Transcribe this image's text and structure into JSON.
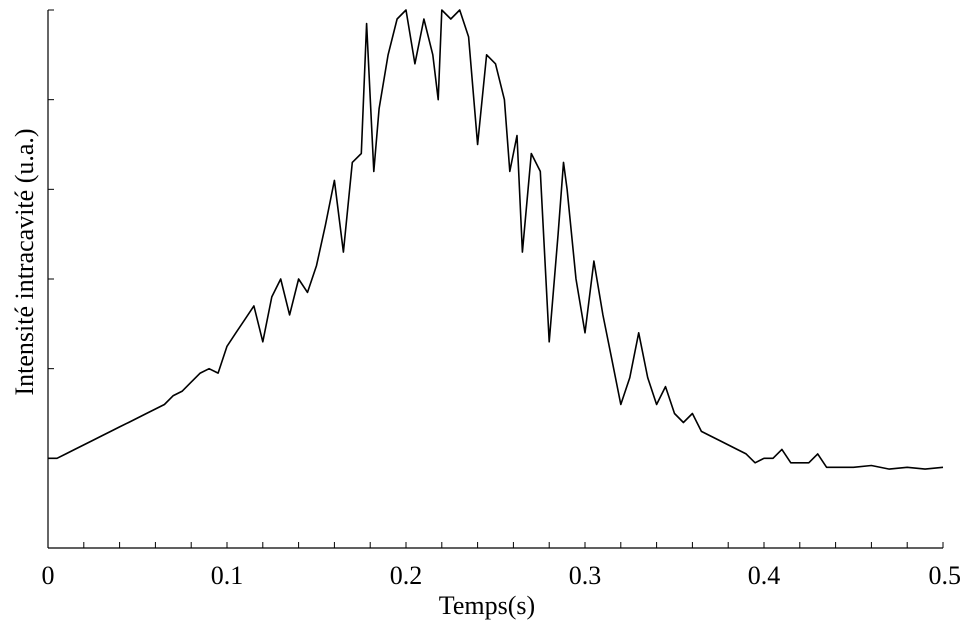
{
  "chart_data": {
    "type": "line",
    "xlabel": "Temps(s)",
    "ylabel": "Intensité intracavité (u.a.)",
    "xlim": [
      0,
      0.5
    ],
    "ylim": [
      0,
      6
    ],
    "x_ticks": [
      "0",
      "0.1",
      "0.2",
      "0.3",
      "0.4",
      "0.5"
    ],
    "x_minor_step": 0.02,
    "y_tick_step": 1,
    "y_tick_labels_shown": false,
    "grid": false,
    "legend": "none",
    "series": [
      {
        "x": [
          0.0,
          0.005,
          0.01,
          0.015,
          0.02,
          0.025,
          0.03,
          0.035,
          0.04,
          0.045,
          0.05,
          0.055,
          0.06,
          0.065,
          0.07,
          0.075,
          0.08,
          0.085,
          0.09,
          0.095,
          0.1,
          0.105,
          0.11,
          0.115,
          0.12,
          0.125,
          0.13,
          0.135,
          0.14,
          0.145,
          0.15,
          0.155,
          0.16,
          0.165,
          0.17,
          0.175,
          0.178,
          0.182,
          0.185,
          0.19,
          0.195,
          0.2,
          0.205,
          0.21,
          0.215,
          0.218,
          0.22,
          0.225,
          0.23,
          0.235,
          0.24,
          0.245,
          0.25,
          0.255,
          0.258,
          0.262,
          0.265,
          0.27,
          0.275,
          0.28,
          0.285,
          0.288,
          0.29,
          0.295,
          0.3,
          0.305,
          0.31,
          0.315,
          0.32,
          0.325,
          0.33,
          0.335,
          0.34,
          0.345,
          0.35,
          0.355,
          0.36,
          0.365,
          0.37,
          0.375,
          0.38,
          0.385,
          0.39,
          0.395,
          0.4,
          0.405,
          0.41,
          0.415,
          0.42,
          0.425,
          0.43,
          0.435,
          0.44,
          0.45,
          0.46,
          0.47,
          0.48,
          0.49,
          0.5
        ],
        "y": [
          1.0,
          1.0,
          1.05,
          1.1,
          1.15,
          1.2,
          1.25,
          1.3,
          1.35,
          1.4,
          1.45,
          1.5,
          1.55,
          1.6,
          1.7,
          1.75,
          1.85,
          1.95,
          2.0,
          1.95,
          2.25,
          2.4,
          2.55,
          2.7,
          2.3,
          2.8,
          3.0,
          2.6,
          3.0,
          2.85,
          3.15,
          3.6,
          4.1,
          3.3,
          4.3,
          4.4,
          5.85,
          4.2,
          4.9,
          5.5,
          5.9,
          6.0,
          5.4,
          5.9,
          5.5,
          5.0,
          6.0,
          5.9,
          6.0,
          5.7,
          4.5,
          5.5,
          5.4,
          5.0,
          4.2,
          4.6,
          3.3,
          4.4,
          4.2,
          2.3,
          3.5,
          4.3,
          4.0,
          3.0,
          2.4,
          3.2,
          2.6,
          2.1,
          1.6,
          1.9,
          2.4,
          1.9,
          1.6,
          1.8,
          1.5,
          1.4,
          1.5,
          1.3,
          1.25,
          1.2,
          1.15,
          1.1,
          1.05,
          0.95,
          1.0,
          1.0,
          1.1,
          0.95,
          0.95,
          0.95,
          1.05,
          0.9,
          0.9,
          0.9,
          0.92,
          0.88,
          0.9,
          0.88,
          0.9
        ]
      }
    ]
  }
}
